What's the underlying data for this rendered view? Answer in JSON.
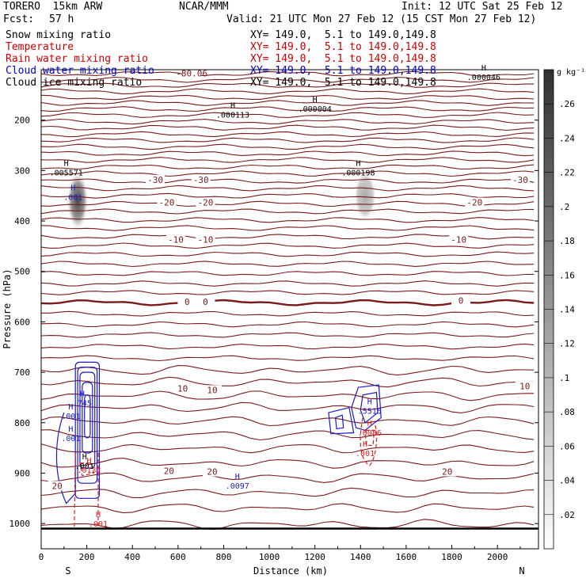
{
  "header": {
    "model_name": "TORERO  15km ARW",
    "institution": "NCAR/MMM",
    "init": "Init: 12 UTC Sat 25 Feb 12",
    "forecast_label": "Fcst:",
    "forecast_hours": "57 h",
    "valid": "Valid: 21 UTC Mon 27 Feb 12 (15 CST Mon 27 Feb 12)"
  },
  "legend": [
    {
      "label": "Snow mixing ratio",
      "xy": "XY= 149.0,  5.1 to 149.0,149.8",
      "color": "#000000"
    },
    {
      "label": "Temperature",
      "xy": "XY= 149.0,  5.1 to 149.0,149.8",
      "color": "#cc0000"
    },
    {
      "label": "Rain water mixing ratio",
      "xy": "XY= 149.0,  5.1 to 149.0,149.8",
      "color": "#cc0000"
    },
    {
      "label": "Cloud water mixing ratio",
      "xy": "XY= 149.0,  5.1 to 149.0,149.8",
      "color": "#0000cc"
    },
    {
      "label": "Cloud ice mixing ratio",
      "xy": "XY= 149.0,  5.1 to 149.0,149.8",
      "color": "#000000"
    }
  ],
  "colorbar": {
    "unit": "g kg⁻¹",
    "ticks": [
      ".02",
      ".04",
      ".06",
      ".08",
      ".1",
      ".12",
      ".14",
      ".16",
      ".18",
      ".2",
      ".22",
      ".24",
      ".26"
    ],
    "tick_values": [
      0.02,
      0.04,
      0.06,
      0.08,
      0.1,
      0.12,
      0.14,
      0.16,
      0.18,
      0.2,
      0.22,
      0.24,
      0.26
    ],
    "range": [
      0,
      0.28
    ]
  },
  "chart_data": {
    "type": "contour",
    "xlabel": "Distance (km)",
    "ylabel": "Pressure (hPa)",
    "xlim": [
      0,
      2180
    ],
    "ylim": [
      1050,
      100
    ],
    "xticks": [
      0,
      200,
      400,
      600,
      800,
      1000,
      1200,
      1400,
      1600,
      1800,
      2000
    ],
    "yticks": [
      200,
      300,
      400,
      500,
      600,
      700,
      800,
      900,
      1000
    ],
    "end_labels": {
      "left": "S",
      "right": "N"
    },
    "temperature_contours": [
      {
        "label": "-80.06",
        "x": 660,
        "p": 107
      },
      {
        "label": "-30",
        "x": 500,
        "p": 318
      },
      {
        "label": "-30",
        "x": 700,
        "p": 318
      },
      {
        "label": "-30",
        "x": 2100,
        "p": 318
      },
      {
        "label": "-20",
        "x": 550,
        "p": 363
      },
      {
        "label": "-20",
        "x": 720,
        "p": 363
      },
      {
        "label": "-20",
        "x": 1900,
        "p": 363
      },
      {
        "label": "-10",
        "x": 590,
        "p": 437
      },
      {
        "label": "-10",
        "x": 720,
        "p": 437
      },
      {
        "label": "-10",
        "x": 1830,
        "p": 437
      },
      {
        "label": "0",
        "x": 640,
        "p": 560
      },
      {
        "label": "0",
        "x": 720,
        "p": 560
      },
      {
        "label": "0",
        "x": 1840,
        "p": 558
      },
      {
        "label": "10",
        "x": 620,
        "p": 732
      },
      {
        "label": "10",
        "x": 750,
        "p": 735
      },
      {
        "label": "10",
        "x": 2120,
        "p": 727
      },
      {
        "label": "20",
        "x": 560,
        "p": 895
      },
      {
        "label": "20",
        "x": 750,
        "p": 897
      },
      {
        "label": "20",
        "x": 1780,
        "p": 897
      },
      {
        "label": "20",
        "x": 70,
        "p": 925
      }
    ],
    "maxima": [
      {
        "label": ".000046",
        "x": 1940,
        "p": 114
      },
      {
        "label": ".000004",
        "x": 1200,
        "p": 177
      },
      {
        "label": ".000113",
        "x": 840,
        "p": 189
      },
      {
        "label": ".005571",
        "x": 110,
        "p": 303
      },
      {
        "label": ".001",
        "x": 140,
        "p": 352
      },
      {
        "label": ".000198",
        "x": 1390,
        "p": 303
      },
      {
        "label": ".745",
        "x": 180,
        "p": 760
      },
      {
        "label": ".001",
        "x": 130,
        "p": 786
      },
      {
        "label": ".001",
        "x": 130,
        "p": 830
      },
      {
        "label": ".001",
        "x": 190,
        "p": 885
      },
      {
        "label": ".0132",
        "x": 210,
        "p": 893
      },
      {
        "label": ".001",
        "x": 250,
        "p": 1000
      },
      {
        "label": ".0097",
        "x": 860,
        "p": 924
      },
      {
        "label": ".5515",
        "x": 1440,
        "p": 776
      },
      {
        "label": ".0086",
        "x": 1440,
        "p": 819
      },
      {
        "label": ".001",
        "x": 1420,
        "p": 860
      }
    ],
    "snow_cores": [
      {
        "x": 160,
        "p_top": 300,
        "p_bottom": 420,
        "max": 0.25
      },
      {
        "x": 1420,
        "p_top": 300,
        "p_bottom": 400,
        "max": 0.12
      }
    ]
  }
}
